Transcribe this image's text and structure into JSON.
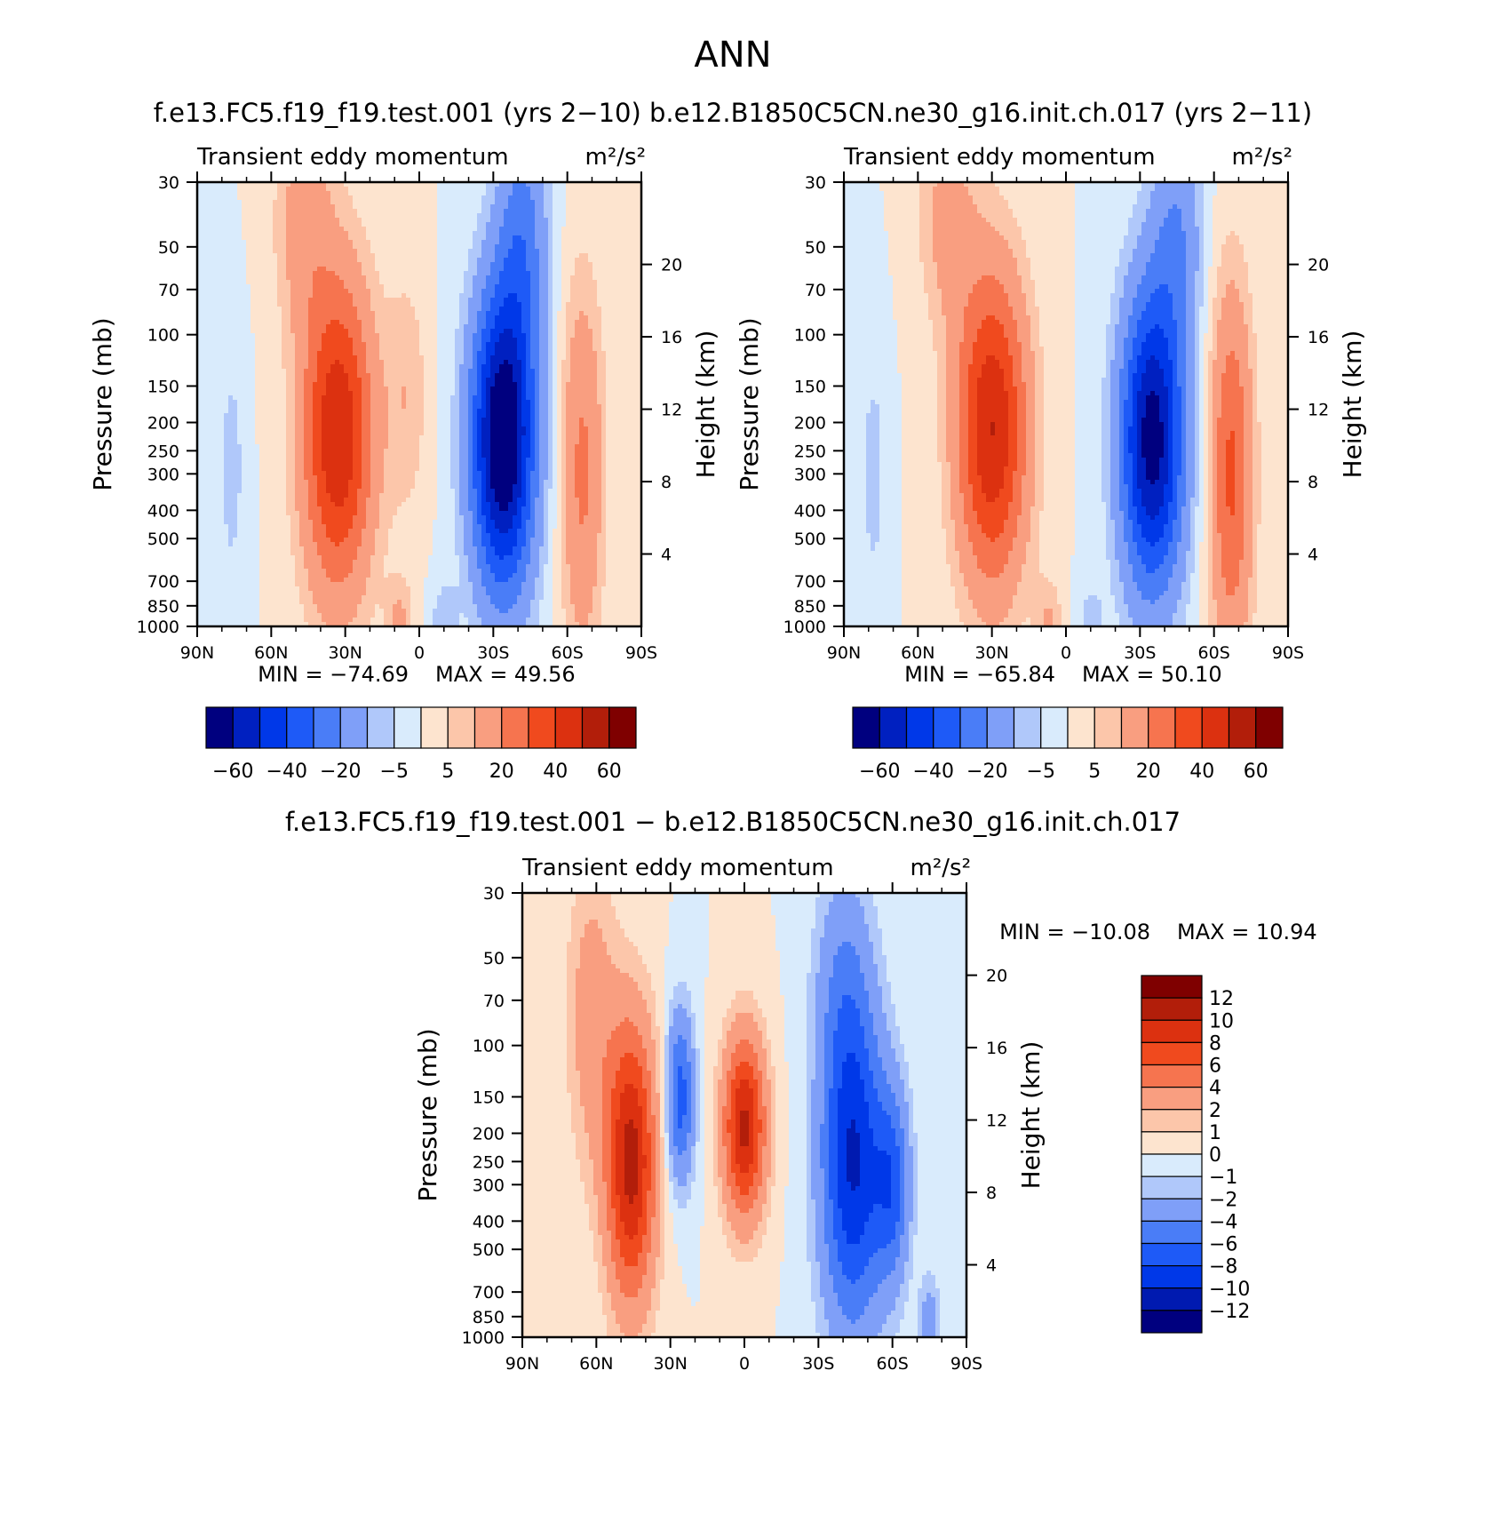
{
  "page": {
    "season": "ANN",
    "top_title": "f.e13.FC5.f19_f19.test.001 (yrs 2−10)  b.e12.B1850C5CN.ne30_g16.init.ch.017 (yrs 2−11)",
    "bottom_title": "f.e13.FC5.f19_f19.test.001 − b.e12.B1850C5CN.ne30_g16.init.ch.017"
  },
  "colors": {
    "abs": [
      "#00007f",
      "#0020c0",
      "#0038e8",
      "#1e5af7",
      "#4a7df7",
      "#7f9ff8",
      "#b0c8fa",
      "#d9ebfc",
      "#fde4cf",
      "#fcc6aa",
      "#f99e80",
      "#f6744f",
      "#f04a1e",
      "#dc3110",
      "#b21e0a",
      "#7f0000"
    ],
    "diff": [
      "#00007f",
      "#001ab0",
      "#0038e8",
      "#1e5af7",
      "#4a7df7",
      "#7f9ff8",
      "#b0c8fa",
      "#d9ebfc",
      "#fde4cf",
      "#fcc6aa",
      "#f99e80",
      "#f6744f",
      "#f04a1e",
      "#dc3110",
      "#b21e0a",
      "#7f0000"
    ]
  },
  "chart_data": [
    {
      "type": "heatmap",
      "id": "model",
      "title": "Transient eddy momentum",
      "units": "m²/s²",
      "xlabel": "",
      "ylabel": "Pressure (mb)",
      "y2label": "Height (km)",
      "x_range": [
        90,
        -90
      ],
      "x_ticks": [
        {
          "v": 90,
          "label": "90N"
        },
        {
          "v": 60,
          "label": "60N"
        },
        {
          "v": 30,
          "label": "30N"
        },
        {
          "v": 0,
          "label": "0"
        },
        {
          "v": -30,
          "label": "30S"
        },
        {
          "v": -60,
          "label": "60S"
        },
        {
          "v": -90,
          "label": "90S"
        }
      ],
      "y_range": [
        1000,
        30
      ],
      "y_ticks": [
        1000,
        850,
        700,
        500,
        400,
        300,
        250,
        200,
        150,
        100,
        70,
        50,
        30
      ],
      "height_ticks": [
        4,
        8,
        12,
        16,
        20
      ],
      "min_label": "MIN = −74.69",
      "max_label": "MAX =   49.56",
      "levels": [
        -70,
        -60,
        -50,
        -40,
        -30,
        -20,
        -10,
        -5,
        0,
        5,
        10,
        20,
        30,
        40,
        50,
        60,
        70
      ],
      "colorbar_labels": [
        {
          "v": -60,
          "label": "−60"
        },
        {
          "v": -40,
          "label": "−40"
        },
        {
          "v": -20,
          "label": "−20"
        },
        {
          "v": -5,
          "label": "−5"
        },
        {
          "v": 5,
          "label": "5"
        },
        {
          "v": 20,
          "label": "20"
        },
        {
          "v": 40,
          "label": "40"
        },
        {
          "v": 60,
          "label": "60"
        }
      ],
      "features": [
        {
          "lat": 33,
          "p": 220,
          "amp": 49.6,
          "wlat": 10,
          "wz": 2.6
        },
        {
          "lat": -34,
          "p": 230,
          "amp": -74.7,
          "wlat": 9,
          "wz": 2.5
        },
        {
          "lat": -66,
          "p": 290,
          "amp": 22,
          "wlat": 6,
          "wz": 3.0
        },
        {
          "lat": 47,
          "p": 40,
          "amp": 14,
          "wlat": 8,
          "wz": 1.8
        },
        {
          "lat": -42,
          "p": 45,
          "amp": -22,
          "wlat": 7,
          "wz": 2.0
        },
        {
          "lat": 5,
          "p": 160,
          "amp": 9,
          "wlat": 6,
          "wz": 2.0
        },
        {
          "lat": 76,
          "p": 290,
          "amp": -7,
          "wlat": 4,
          "wz": 2.2
        },
        {
          "lat": 8,
          "p": 950,
          "amp": 11,
          "wlat": 4,
          "wz": 0.7
        },
        {
          "lat": -10,
          "p": 960,
          "amp": -8,
          "wlat": 4,
          "wz": 0.7
        }
      ]
    },
    {
      "type": "heatmap",
      "id": "obs",
      "title": "Transient eddy momentum",
      "units": "m²/s²",
      "xlabel": "",
      "ylabel": "Pressure (mb)",
      "y2label": "Height (km)",
      "x_range": [
        90,
        -90
      ],
      "x_ticks": [
        {
          "v": 90,
          "label": "90N"
        },
        {
          "v": 60,
          "label": "60N"
        },
        {
          "v": 30,
          "label": "30N"
        },
        {
          "v": 0,
          "label": "0"
        },
        {
          "v": -30,
          "label": "30S"
        },
        {
          "v": -60,
          "label": "60S"
        },
        {
          "v": -90,
          "label": "90S"
        }
      ],
      "y_range": [
        1000,
        30
      ],
      "y_ticks": [
        1000,
        850,
        700,
        500,
        400,
        300,
        250,
        200,
        150,
        100,
        70,
        50,
        30
      ],
      "height_ticks": [
        4,
        8,
        12,
        16,
        20
      ],
      "min_label": "MIN = −65.84",
      "max_label": "MAX =   50.10",
      "levels": [
        -70,
        -60,
        -50,
        -40,
        -30,
        -20,
        -10,
        -5,
        0,
        5,
        10,
        20,
        30,
        40,
        50,
        60,
        70
      ],
      "colorbar_labels": [
        {
          "v": -60,
          "label": "−60"
        },
        {
          "v": -40,
          "label": "−40"
        },
        {
          "v": -20,
          "label": "−20"
        },
        {
          "v": -5,
          "label": "−5"
        },
        {
          "v": 5,
          "label": "5"
        },
        {
          "v": 20,
          "label": "20"
        },
        {
          "v": 40,
          "label": "40"
        },
        {
          "v": 60,
          "label": "60"
        }
      ],
      "features": [
        {
          "lat": 30,
          "p": 210,
          "amp": 50.1,
          "wlat": 10,
          "wz": 2.6
        },
        {
          "lat": -35,
          "p": 230,
          "amp": -65.8,
          "wlat": 9,
          "wz": 2.5
        },
        {
          "lat": -67,
          "p": 300,
          "amp": 32,
          "wlat": 6,
          "wz": 3.0
        },
        {
          "lat": 48,
          "p": 40,
          "amp": 13,
          "wlat": 8,
          "wz": 1.8
        },
        {
          "lat": -45,
          "p": 45,
          "amp": -18,
          "wlat": 7,
          "wz": 1.8
        },
        {
          "lat": 78,
          "p": 300,
          "amp": -7,
          "wlat": 4,
          "wz": 2.2
        },
        {
          "lat": 7,
          "p": 960,
          "amp": 10,
          "wlat": 4,
          "wz": 0.7
        },
        {
          "lat": -10,
          "p": 960,
          "amp": -7,
          "wlat": 4,
          "wz": 0.7
        }
      ]
    },
    {
      "type": "heatmap",
      "id": "diff",
      "title": "Transient eddy momentum",
      "units": "m²/s²",
      "xlabel": "",
      "ylabel": "Pressure (mb)",
      "y2label": "Height (km)",
      "x_range": [
        90,
        -90
      ],
      "x_ticks": [
        {
          "v": 90,
          "label": "90N"
        },
        {
          "v": 60,
          "label": "60N"
        },
        {
          "v": 30,
          "label": "30N"
        },
        {
          "v": 0,
          "label": "0"
        },
        {
          "v": -30,
          "label": "30S"
        },
        {
          "v": -60,
          "label": "60S"
        },
        {
          "v": -90,
          "label": "90S"
        }
      ],
      "y_range": [
        1000,
        30
      ],
      "y_ticks": [
        1000,
        850,
        700,
        500,
        400,
        300,
        250,
        200,
        150,
        100,
        70,
        50,
        30
      ],
      "height_ticks": [
        4,
        8,
        12,
        16,
        20
      ],
      "min_label": "MIN = −10.08",
      "max_label": "MAX =   10.94",
      "levels": [
        -14,
        -12,
        -10,
        -8,
        -6,
        -4,
        -2,
        -1,
        0,
        1,
        2,
        4,
        6,
        8,
        10,
        12,
        14
      ],
      "colorbar_labels": [
        {
          "v": 12,
          "label": "12"
        },
        {
          "v": 10,
          "label": "10"
        },
        {
          "v": 8,
          "label": "8"
        },
        {
          "v": 6,
          "label": "6"
        },
        {
          "v": 4,
          "label": "4"
        },
        {
          "v": 2,
          "label": "2"
        },
        {
          "v": 1,
          "label": "1"
        },
        {
          "v": 0,
          "label": "0"
        },
        {
          "v": -1,
          "label": "−1"
        },
        {
          "v": -2,
          "label": "−2"
        },
        {
          "v": -4,
          "label": "−4"
        },
        {
          "v": -6,
          "label": "−6"
        },
        {
          "v": -8,
          "label": "−8"
        },
        {
          "v": -10,
          "label": "−10"
        },
        {
          "v": -12,
          "label": "−12"
        }
      ],
      "features": [
        {
          "lat": 46,
          "p": 250,
          "amp": 10.9,
          "wlat": 7,
          "wz": 2.3
        },
        {
          "lat": 26,
          "p": 150,
          "amp": -7,
          "wlat": 4,
          "wz": 1.4
        },
        {
          "lat": 0,
          "p": 190,
          "amp": 10.5,
          "wlat": 6,
          "wz": 1.5
        },
        {
          "lat": -44,
          "p": 260,
          "amp": -10.1,
          "wlat": 9,
          "wz": 2.7
        },
        {
          "lat": -60,
          "p": 300,
          "amp": -6,
          "wlat": 5,
          "wz": 1.6
        },
        {
          "lat": 62,
          "p": 80,
          "amp": 3,
          "wlat": 7,
          "wz": 2.5
        },
        {
          "lat": -40,
          "p": 60,
          "amp": -3,
          "wlat": 8,
          "wz": 2.0
        },
        {
          "lat": -75,
          "p": 900,
          "amp": -3,
          "wlat": 3,
          "wz": 0.8
        }
      ]
    }
  ]
}
